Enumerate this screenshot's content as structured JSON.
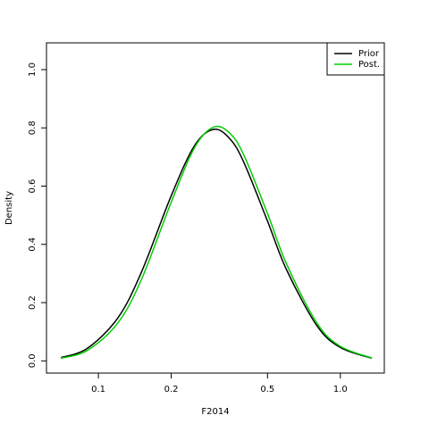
{
  "chart_data": {
    "type": "line",
    "xlabel": "F2014",
    "ylabel": "Density",
    "xscale": "log",
    "x": [
      0.07,
      0.09,
      0.12,
      0.15,
      0.2,
      0.25,
      0.3,
      0.35,
      0.4,
      0.5,
      0.6,
      0.8,
      1.0,
      1.35
    ],
    "series": [
      {
        "name": "Prior",
        "color": "#000000",
        "values": [
          0.011,
          0.043,
          0.146,
          0.301,
          0.567,
          0.74,
          0.795,
          0.762,
          0.68,
          0.48,
          0.312,
          0.121,
          0.046,
          0.009
        ]
      },
      {
        "name": "Post.",
        "color": "#00cd00",
        "values": [
          0.009,
          0.036,
          0.129,
          0.276,
          0.545,
          0.733,
          0.803,
          0.781,
          0.705,
          0.506,
          0.332,
          0.13,
          0.05,
          0.01
        ]
      }
    ],
    "xlim": [
      0.061,
      1.52
    ],
    "ylim": [
      -0.042,
      1.092
    ],
    "xticks": [
      0.1,
      0.2,
      0.5,
      {
        "value": 1,
        "label": "1.0"
      }
    ],
    "yticks": [
      {
        "value": 0,
        "label": "0.0"
      },
      0.2,
      0.4,
      0.6,
      0.8,
      {
        "value": 1,
        "label": "1.0"
      }
    ],
    "legend": "top-right"
  }
}
